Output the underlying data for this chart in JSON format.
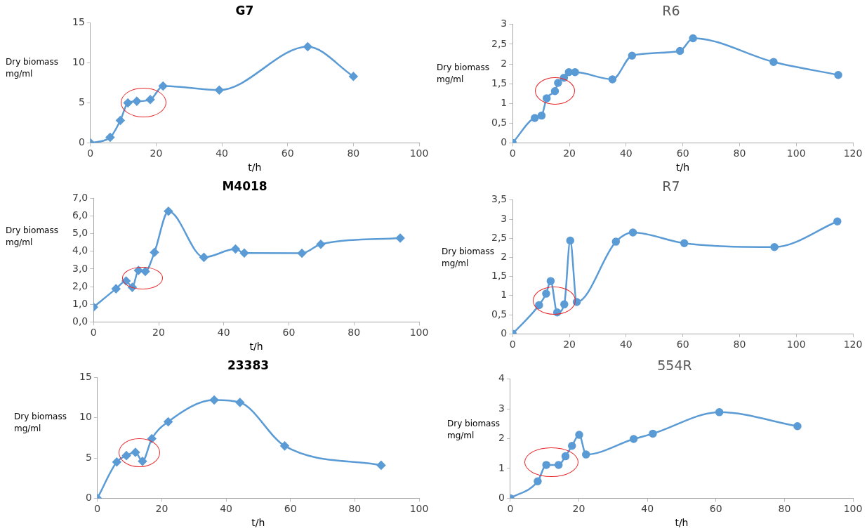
{
  "chart_data": [
    {
      "type": "line",
      "title": "G7",
      "xlabel": "t/h",
      "ylabel": "Dry biomass mg/ml",
      "marker": "diamond",
      "grid": false,
      "line_style": "solid",
      "x": [
        0,
        6,
        9.1,
        11.4,
        14.1,
        18.2,
        22.1,
        39.2,
        66.1,
        80
      ],
      "series": [
        {
          "color": "#5b9bd5",
          "values": [
            0,
            0.7,
            2.8,
            5.0,
            5.2,
            5.4,
            7.1,
            6.6,
            12.0,
            8.3
          ]
        }
      ],
      "xlim": [
        0,
        100
      ],
      "xticks": [
        0,
        20,
        40,
        60,
        80,
        100
      ],
      "ylim": [
        0,
        15
      ],
      "yticks": [
        0,
        5,
        10,
        15
      ]
    },
    {
      "type": "line",
      "title": "R6",
      "xlabel": "t/h",
      "ylabel": "Dry biomass mg/ml",
      "marker": "circle",
      "grid": false,
      "line_style": "solid",
      "x": [
        0,
        7.8,
        10.2,
        12,
        14.9,
        16,
        18.1,
        19.8,
        22,
        35.2,
        42.1,
        59,
        63.6,
        92,
        114.8
      ],
      "series": [
        {
          "color": "#5b9bd5",
          "values": [
            0,
            0.63,
            0.69,
            1.13,
            1.31,
            1.52,
            1.65,
            1.79,
            1.79,
            1.61,
            2.21,
            2.33,
            2.65,
            2.05,
            1.72
          ]
        }
      ],
      "xlim": [
        0,
        120
      ],
      "xticks": [
        0,
        20,
        40,
        60,
        80,
        100,
        120
      ],
      "ylim": [
        0,
        3
      ],
      "yticks": [
        0,
        {
          "value": 0.5,
          "label": "0,5"
        },
        1,
        {
          "value": 1.5,
          "label": "1,5"
        },
        2,
        {
          "value": 2.5,
          "label": "2,5"
        },
        3
      ]
    },
    {
      "type": "line",
      "title": "M4018",
      "xlabel": "t/h",
      "ylabel": "Dry biomass mg/ml",
      "marker": "diamond",
      "grid": false,
      "line_style": "solid",
      "x": [
        0,
        6.9,
        10,
        11.9,
        13.8,
        15.9,
        18.7,
        23,
        33.9,
        43.6,
        46.3,
        64,
        69.8,
        94.2
      ],
      "series": [
        {
          "color": "#5b9bd5",
          "values": [
            0.84,
            1.88,
            2.32,
            1.96,
            2.92,
            2.86,
            3.94,
            6.27,
            3.66,
            4.13,
            3.9,
            3.89,
            4.4,
            4.75
          ]
        }
      ],
      "xlim": [
        0,
        100
      ],
      "xticks": [
        0,
        20,
        40,
        60,
        80,
        100
      ],
      "ylim": [
        0,
        7
      ],
      "yticks": [
        {
          "value": 0,
          "label": "0,0"
        },
        {
          "value": 1,
          "label": "1,0"
        },
        {
          "value": 2,
          "label": "2,0"
        },
        {
          "value": 3,
          "label": "3,0"
        },
        {
          "value": 4,
          "label": "4,0"
        },
        {
          "value": 5,
          "label": "5,0"
        },
        {
          "value": 6,
          "label": "6,0"
        },
        {
          "value": 7,
          "label": "7,0"
        }
      ]
    },
    {
      "type": "line",
      "title": "R7",
      "ylabel": "Dry biomass mg/ml",
      "marker": "circle",
      "grid": false,
      "line_style": "solid",
      "x": [
        0,
        9.3,
        11.8,
        13.4,
        15.7,
        18.2,
        20.3,
        22.6,
        36.4,
        42.4,
        60.5,
        92.3,
        114.5
      ],
      "series": [
        {
          "color": "#5b9bd5",
          "values": [
            0,
            0.75,
            1.05,
            1.38,
            0.56,
            0.77,
            2.44,
            0.83,
            2.41,
            2.65,
            2.37,
            2.27,
            2.94
          ]
        }
      ],
      "xlim": [
        0,
        120
      ],
      "xticks": [
        0,
        20,
        40,
        60,
        80,
        100,
        120
      ],
      "ylim": [
        0,
        3.5
      ],
      "yticks": [
        0,
        {
          "value": 0.5,
          "label": "0,5"
        },
        1,
        {
          "value": 1.5,
          "label": "1,5"
        },
        2,
        {
          "value": 2.5,
          "label": "2,5"
        },
        3,
        {
          "value": 3.5,
          "label": "3,5"
        }
      ]
    },
    {
      "type": "line",
      "title": "23383",
      "xlabel": "t/h",
      "ylabel": "Dry biomass mg/ml",
      "marker": "diamond",
      "grid": false,
      "line_style": "solid",
      "x": [
        0,
        6,
        9,
        11.8,
        14,
        16.9,
        22,
        36.3,
        44.3,
        58.2,
        88.2
      ],
      "series": [
        {
          "color": "#5b9bd5",
          "values": [
            0,
            4.5,
            5.3,
            5.7,
            4.6,
            7.4,
            9.5,
            12.2,
            11.9,
            6.5,
            4.1
          ]
        }
      ],
      "xlim": [
        0,
        100
      ],
      "xticks": [
        0,
        20,
        40,
        60,
        80,
        100
      ],
      "ylim": [
        0,
        15
      ],
      "yticks": [
        0,
        5,
        10,
        15
      ]
    },
    {
      "type": "line",
      "title": "554R",
      "xlabel": "t/h",
      "ylabel": "Dry biomass mg/ml",
      "marker": "circle",
      "grid": false,
      "line_style": "solid",
      "x": [
        0,
        8,
        10.5,
        14.1,
        16.1,
        18,
        20.1,
        22.1,
        36,
        41.6,
        61,
        83.8
      ],
      "series": [
        {
          "color": "#5b9bd5",
          "values": [
            0,
            0.57,
            1.12,
            1.12,
            1.41,
            1.76,
            2.13,
            1.47,
            1.99,
            2.17,
            2.89,
            2.42
          ]
        }
      ],
      "xlim": [
        0,
        100
      ],
      "xticks": [
        0,
        20,
        40,
        60,
        80,
        100
      ],
      "ylim": [
        0,
        4
      ],
      "yticks": [
        0,
        1,
        2,
        3,
        4
      ]
    }
  ]
}
